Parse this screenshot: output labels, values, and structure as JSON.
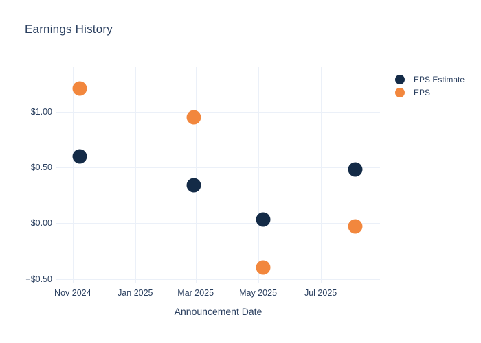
{
  "chart": {
    "title": "Earnings History",
    "xlabel": "Announcement Date"
  },
  "legend": {
    "items": [
      "EPS Estimate",
      "EPS"
    ]
  },
  "chart_data": {
    "type": "scatter",
    "title": "Earnings History",
    "xlabel": "Announcement Date",
    "ylabel": "",
    "grid": true,
    "legend_position": "right-outside-top",
    "background_color": "#ffffff",
    "grid_color": "#ebf0f8",
    "text_color": "#2a3f5f",
    "x_range": [
      "2024-10-16",
      "2025-08-28"
    ],
    "y_range": [
      -0.54,
      1.4
    ],
    "x_ticks": [
      {
        "date": "2024-11-01",
        "label": "Nov 2024"
      },
      {
        "date": "2025-01-01",
        "label": "Jan 2025"
      },
      {
        "date": "2025-03-01",
        "label": "Mar 2025"
      },
      {
        "date": "2025-05-01",
        "label": "May 2025"
      },
      {
        "date": "2025-07-01",
        "label": "Jul 2025"
      }
    ],
    "y_ticks": [
      {
        "value": 1.0,
        "label": "$1.00"
      },
      {
        "value": 0.5,
        "label": "$0.50"
      },
      {
        "value": 0.0,
        "label": "$0.00"
      },
      {
        "value": -0.5,
        "label": "−$0.50"
      }
    ],
    "series": [
      {
        "name": "EPS Estimate",
        "color": "#142b47",
        "marker_size_px": 21,
        "points": [
          {
            "date": "2024-11-08",
            "value": 0.6
          },
          {
            "date": "2025-02-27",
            "value": 0.34
          },
          {
            "date": "2025-05-06",
            "value": 0.03
          },
          {
            "date": "2025-08-04",
            "value": 0.48
          }
        ]
      },
      {
        "name": "EPS",
        "color": "#f2873d",
        "marker_size_px": 21,
        "points": [
          {
            "date": "2024-11-08",
            "value": 1.21
          },
          {
            "date": "2025-02-27",
            "value": 0.95
          },
          {
            "date": "2025-05-06",
            "value": -0.4
          },
          {
            "date": "2025-08-04",
            "value": -0.03
          }
        ]
      }
    ]
  }
}
